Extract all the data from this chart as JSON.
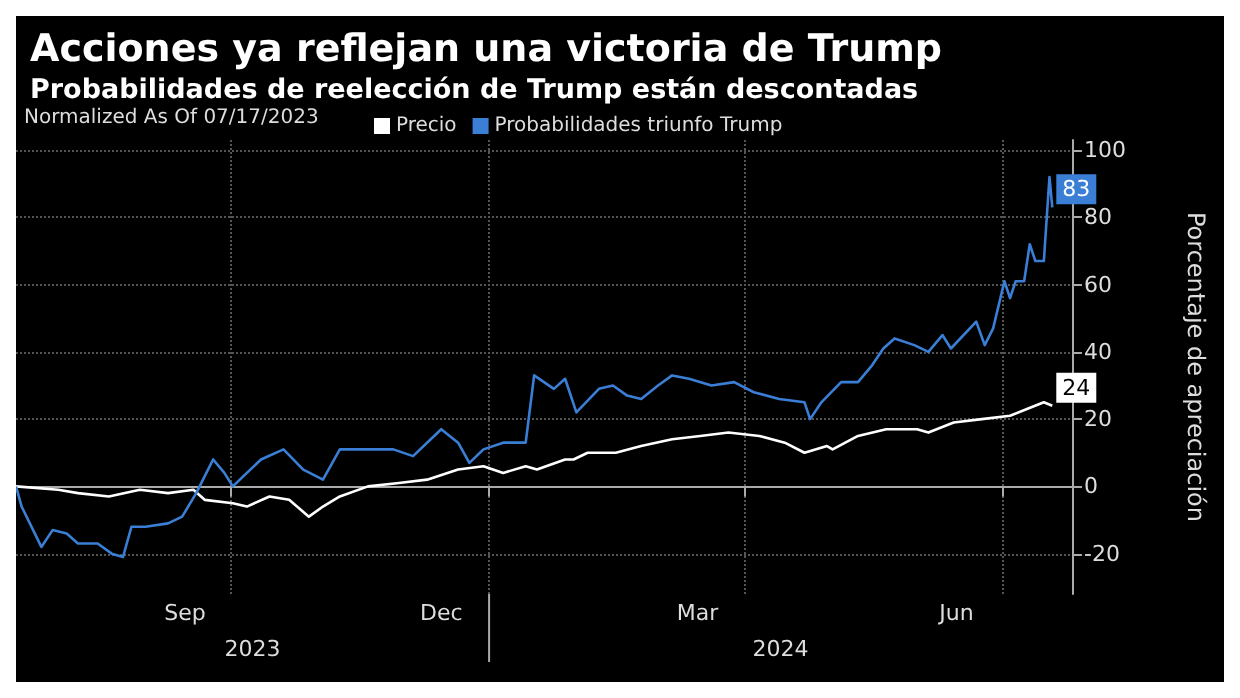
{
  "chart_data": {
    "type": "line",
    "title": "Acciones ya reflejan una victoria de Trump",
    "subtitle": "Probabilidades de reelección de Trump están descontadas",
    "legend_title": "Normalized As Of 07/17/2023",
    "ylabel": "Porcentaje de apreciación",
    "legend": "top left",
    "grid": true,
    "xlim": [
      "2023-07-17",
      "2024-07-26"
    ],
    "xticks": [
      {
        "value": "2023-09-15",
        "label": "Sep"
      },
      {
        "value": "2023-10-01",
        "label": null
      },
      {
        "value": "2023-12-15",
        "label": "Dec"
      },
      {
        "value": "2024-01-01",
        "label": null
      },
      {
        "value": "2024-03-15",
        "label": "Mar"
      },
      {
        "value": "2024-04-01",
        "label": null
      },
      {
        "value": "2024-06-15",
        "label": "Jun"
      },
      {
        "value": "2024-07-01",
        "label": null
      }
    ],
    "annotations": [
      "2023",
      "2024"
    ],
    "ylim": [
      -32,
      103
    ],
    "yticks": [
      -20,
      0,
      20,
      40,
      60,
      80,
      100
    ],
    "series": [
      {
        "name": "Precio",
        "color": "#ffffff",
        "x": [
          "2023-07-17",
          "2023-08-01",
          "2023-08-08",
          "2023-08-19",
          "2023-08-30",
          "2023-09-09",
          "2023-09-18",
          "2023-09-22",
          "2023-10-02",
          "2023-10-07",
          "2023-10-15",
          "2023-10-22",
          "2023-10-29",
          "2023-11-03",
          "2023-11-09",
          "2023-11-19",
          "2023-11-30",
          "2023-12-10",
          "2023-12-21",
          "2023-12-30",
          "2024-01-06",
          "2024-01-14",
          "2024-01-18",
          "2024-01-28",
          "2024-01-31",
          "2024-02-05",
          "2024-02-15",
          "2024-02-24",
          "2024-03-06",
          "2024-03-16",
          "2024-03-26",
          "2024-04-06",
          "2024-04-15",
          "2024-04-22",
          "2024-04-30",
          "2024-05-02",
          "2024-05-11",
          "2024-05-21",
          "2024-06-01",
          "2024-06-05",
          "2024-06-14",
          "2024-06-24",
          "2024-07-04",
          "2024-07-10",
          "2024-07-16",
          "2024-07-19"
        ],
        "values": [
          0,
          -1,
          -2,
          -3,
          -1,
          -2,
          -1,
          -4,
          -5,
          -6,
          -3,
          -4,
          -9,
          -6,
          -3,
          0,
          1,
          2,
          5,
          6,
          4,
          6,
          5,
          8,
          8,
          10,
          10,
          12,
          14,
          15,
          16,
          15,
          13,
          10,
          12,
          11,
          15,
          17,
          17,
          16,
          19,
          20,
          21,
          23,
          25,
          24
        ],
        "value_labels": [
          null,
          null,
          null,
          null,
          null,
          null,
          null,
          null,
          null,
          null,
          null,
          null,
          null,
          null,
          null,
          null,
          null,
          null,
          null,
          null,
          null,
          null,
          null,
          null,
          null,
          null,
          null,
          null,
          null,
          null,
          null,
          null,
          null,
          null,
          null,
          null,
          null,
          null,
          null,
          null,
          null,
          null,
          null,
          null,
          null,
          "24"
        ]
      },
      {
        "name": "Probabilidades triunfo Trump",
        "color": "#3a7fd5",
        "x": [
          "2023-07-17",
          "2023-07-19",
          "2023-07-26",
          "2023-07-30",
          "2023-08-04",
          "2023-08-08",
          "2023-08-15",
          "2023-08-20",
          "2023-08-24",
          "2023-08-27",
          "2023-09-01",
          "2023-09-09",
          "2023-09-14",
          "2023-09-19",
          "2023-09-25",
          "2023-09-29",
          "2023-10-02",
          "2023-10-07",
          "2023-10-12",
          "2023-10-20",
          "2023-10-27",
          "2023-11-03",
          "2023-11-09",
          "2023-11-15",
          "2023-11-22",
          "2023-11-28",
          "2023-12-05",
          "2023-12-15",
          "2023-12-21",
          "2023-12-25",
          "2023-12-30",
          "2024-01-06",
          "2024-01-14",
          "2024-01-17",
          "2024-01-24",
          "2024-01-28",
          "2024-02-01",
          "2024-02-09",
          "2024-02-14",
          "2024-02-19",
          "2024-02-24",
          "2024-03-01",
          "2024-03-06",
          "2024-03-12",
          "2024-03-20",
          "2024-03-28",
          "2024-04-04",
          "2024-04-13",
          "2024-04-22",
          "2024-04-24",
          "2024-04-28",
          "2024-05-05",
          "2024-05-11",
          "2024-05-16",
          "2024-05-20",
          "2024-05-24",
          "2024-05-31",
          "2024-06-05",
          "2024-06-10",
          "2024-06-13",
          "2024-06-22",
          "2024-06-25",
          "2024-06-28",
          "2024-07-02",
          "2024-07-04",
          "2024-07-06",
          "2024-07-09",
          "2024-07-11",
          "2024-07-13",
          "2024-07-16",
          "2024-07-18",
          "2024-07-19"
        ],
        "values": [
          0,
          -6,
          -18,
          -13,
          -14,
          -17,
          -17,
          -20,
          -21,
          -12,
          -12,
          -11,
          -9,
          -2,
          8,
          4,
          0,
          4,
          8,
          11,
          5,
          2,
          11,
          11,
          11,
          11,
          9,
          17,
          13,
          7,
          11,
          13,
          13,
          33,
          29,
          32,
          22,
          29,
          30,
          27,
          26,
          30,
          33,
          32,
          30,
          31,
          28,
          26,
          25,
          20,
          25,
          31,
          31,
          36,
          41,
          44,
          42,
          40,
          45,
          41,
          49,
          42,
          47,
          61,
          56,
          61,
          61,
          72,
          67,
          67,
          92,
          83
        ],
        "value_labels": [
          null,
          null,
          null,
          null,
          null,
          null,
          null,
          null,
          null,
          null,
          null,
          null,
          null,
          null,
          null,
          null,
          null,
          null,
          null,
          null,
          null,
          null,
          null,
          null,
          null,
          null,
          null,
          null,
          null,
          null,
          null,
          null,
          null,
          null,
          null,
          null,
          null,
          null,
          null,
          null,
          null,
          null,
          null,
          null,
          null,
          null,
          null,
          null,
          null,
          null,
          null,
          null,
          null,
          null,
          null,
          null,
          null,
          null,
          null,
          null,
          null,
          null,
          null,
          null,
          null,
          null,
          null,
          null,
          null,
          null,
          null,
          "83"
        ]
      }
    ]
  }
}
